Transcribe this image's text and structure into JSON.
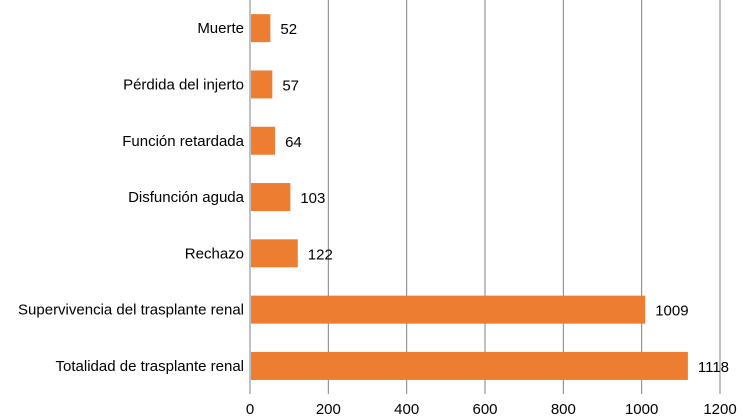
{
  "chart_data": {
    "type": "bar",
    "orientation": "horizontal",
    "categories": [
      "Muerte",
      "Pérdida del injerto",
      "Función retardada",
      "Disfunción aguda",
      "Rechazo",
      "Supervivencia del trasplante renal",
      "Totalidad de trasplante renal"
    ],
    "values": [
      52,
      57,
      64,
      103,
      122,
      1009,
      1118
    ],
    "xlim": [
      0,
      1200
    ],
    "xticks": [
      "0",
      "200",
      "400",
      "600",
      "800",
      "1000",
      "1200"
    ],
    "title": "",
    "xlabel": "",
    "ylabel": "",
    "grid": "vertical",
    "bar_color": "#ED7D31",
    "grid_color": "#808080"
  }
}
